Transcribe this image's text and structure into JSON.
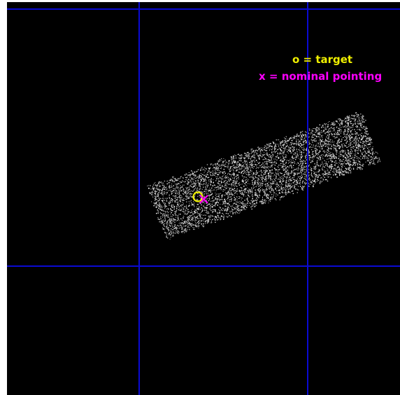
{
  "legend": {
    "target_label": "o = target",
    "pointing_label": "x = nominal pointing"
  },
  "colors": {
    "background": "#000000",
    "grid": "#0a0ad2",
    "target": "#f0f000",
    "pointing": "#ff00ff",
    "detector": "#bdbdbd"
  },
  "markers": {
    "target_symbol": "circle",
    "pointing_symbol": "x-cross"
  }
}
